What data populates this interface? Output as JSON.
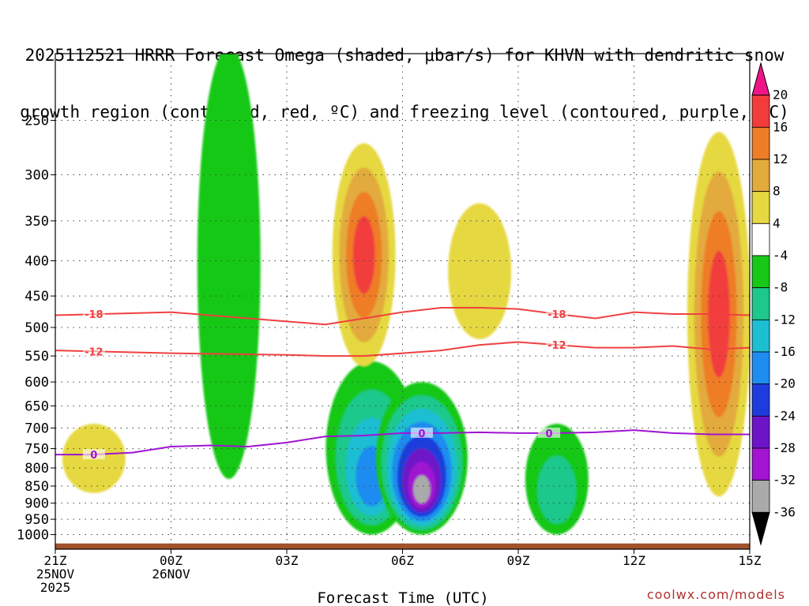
{
  "title": {
    "line1": "2025112521 HRRR Forecast Omega (shaded, μbar/s) for KHVN with dendritic snow",
    "line2": "growth region (contoured, red, ºC) and freezing level (contoured, purple, ºC)"
  },
  "credit": "coolwx.com/models",
  "chart_data": {
    "type": "heatmap",
    "title": "2025112521 HRRR Forecast Omega (shaded, μbar/s) for KHVN with dendritic snow growth region (contoured, red, ºC) and freezing level (contoured, purple, ºC)",
    "xlabel": "Forecast Time (UTC)",
    "ylabel": "",
    "x_ticks": [
      {
        "hour": 0,
        "label": [
          "21Z",
          "25NOV",
          "2025"
        ]
      },
      {
        "hour": 3,
        "label": [
          "00Z",
          "26NOV"
        ]
      },
      {
        "hour": 6,
        "label": [
          "03Z"
        ]
      },
      {
        "hour": 9,
        "label": [
          "06Z"
        ]
      },
      {
        "hour": 12,
        "label": [
          "09Z"
        ]
      },
      {
        "hour": 15,
        "label": [
          "12Z"
        ]
      },
      {
        "hour": 18,
        "label": [
          "15Z"
        ]
      }
    ],
    "xlim": [
      0,
      18
    ],
    "y_ticks": [
      250,
      300,
      350,
      400,
      450,
      500,
      550,
      600,
      650,
      700,
      750,
      800,
      850,
      900,
      950,
      1000
    ],
    "ylim": [
      1050,
      200
    ],
    "y_scale": "log-pressure",
    "grid": true,
    "colorbar": {
      "labels": [
        20,
        16,
        12,
        8,
        4,
        -4,
        -8,
        -12,
        -16,
        -20,
        -24,
        -28,
        -32,
        -36
      ],
      "colors": [
        "#ee1488",
        "#f23c3c",
        "#ee7d28",
        "#e3aa3c",
        "#e6d840",
        "#ffffff",
        "#18c818",
        "#1ec88c",
        "#1ebed2",
        "#1e8cf0",
        "#1e3cdc",
        "#6e14c8",
        "#a014d2",
        "#aaaaaa",
        "#000000"
      ]
    },
    "omega_features": [
      {
        "kind": "ascent",
        "hour": 4.5,
        "p_top": 195,
        "p_bot": 830,
        "min_value": -8
      },
      {
        "kind": "ascent",
        "hour": 8.2,
        "p_top": 560,
        "p_bot": 1000,
        "min_value": -20
      },
      {
        "kind": "ascent",
        "hour": 9.5,
        "p_top": 600,
        "p_bot": 1000,
        "min_value": -36
      },
      {
        "kind": "ascent",
        "hour": 13,
        "p_top": 690,
        "p_bot": 1000,
        "min_value": -12
      },
      {
        "kind": "subsidence",
        "hour": 8.0,
        "p_top": 270,
        "p_bot": 570,
        "max_value": 20
      },
      {
        "kind": "subsidence",
        "hour": 11.0,
        "p_top": 330,
        "p_bot": 520,
        "max_value": 8
      },
      {
        "kind": "subsidence",
        "hour": 17.2,
        "p_top": 260,
        "p_bot": 880,
        "max_value": 20
      },
      {
        "kind": "subsidence",
        "hour": 1.0,
        "p_top": 690,
        "p_bot": 870,
        "max_value": 8
      }
    ],
    "contours": [
      {
        "name": "-18",
        "color": "#f04040",
        "x": [
          0,
          3,
          6,
          7,
          8,
          9,
          10,
          11,
          12,
          13,
          14,
          15,
          16,
          17,
          18
        ],
        "y": [
          480,
          475,
          490,
          495,
          485,
          475,
          468,
          468,
          470,
          478,
          485,
          475,
          478,
          478,
          480
        ]
      },
      {
        "name": "-12",
        "color": "#f04040",
        "x": [
          0,
          3,
          6,
          7,
          8,
          9,
          10,
          11,
          12,
          13,
          14,
          15,
          16,
          17,
          18
        ],
        "y": [
          540,
          545,
          548,
          550,
          550,
          545,
          540,
          530,
          525,
          530,
          535,
          535,
          532,
          538,
          535
        ]
      },
      {
        "name": "0",
        "color": "#a014d2",
        "x": [
          0,
          1,
          2,
          3,
          4,
          5,
          6,
          7,
          8,
          9,
          10,
          11,
          12,
          13,
          14,
          15,
          16,
          17,
          18
        ],
        "y": [
          765,
          765,
          760,
          745,
          742,
          745,
          735,
          720,
          718,
          712,
          712,
          710,
          712,
          712,
          710,
          705,
          712,
          715,
          715
        ]
      }
    ],
    "terrain_p": 1030
  }
}
